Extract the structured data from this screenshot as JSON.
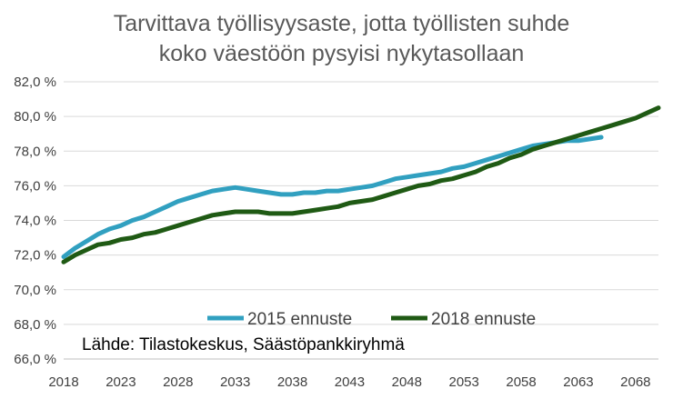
{
  "chart_data": {
    "type": "line",
    "title_lines": [
      "Tarvittava työllisyysaste, jotta työllisten suhde",
      "koko väestöön pysyisi nykytasollaan"
    ],
    "source": "Lähde: Tilastokeskus, Säästöpankkiryhmä",
    "xlabel": "",
    "ylabel": "",
    "xlim": [
      2018,
      2070
    ],
    "ylim": [
      66.0,
      82.0
    ],
    "x_ticks": [
      2018,
      2023,
      2028,
      2033,
      2038,
      2043,
      2048,
      2053,
      2058,
      2063,
      2068
    ],
    "y_ticks": [
      66.0,
      68.0,
      70.0,
      72.0,
      74.0,
      76.0,
      78.0,
      80.0,
      82.0
    ],
    "y_tick_labels": [
      "66,0 %",
      "68,0 %",
      "70,0 %",
      "72,0 %",
      "74,0 %",
      "76,0 %",
      "78,0 %",
      "80,0 %",
      "82,0 %"
    ],
    "grid": "horizontal",
    "legend_position": "bottom-center",
    "series": [
      {
        "name": "2015 ennuste",
        "color": "#31a0c0",
        "x": [
          2018,
          2019,
          2020,
          2021,
          2022,
          2023,
          2024,
          2025,
          2026,
          2027,
          2028,
          2029,
          2030,
          2031,
          2032,
          2033,
          2034,
          2035,
          2036,
          2037,
          2038,
          2039,
          2040,
          2041,
          2042,
          2043,
          2044,
          2045,
          2046,
          2047,
          2048,
          2049,
          2050,
          2051,
          2052,
          2053,
          2054,
          2055,
          2056,
          2057,
          2058,
          2059,
          2060,
          2061,
          2062,
          2063,
          2064,
          2065
        ],
        "values": [
          71.9,
          72.4,
          72.8,
          73.2,
          73.5,
          73.7,
          74.0,
          74.2,
          74.5,
          74.8,
          75.1,
          75.3,
          75.5,
          75.7,
          75.8,
          75.9,
          75.8,
          75.7,
          75.6,
          75.5,
          75.5,
          75.6,
          75.6,
          75.7,
          75.7,
          75.8,
          75.9,
          76.0,
          76.2,
          76.4,
          76.5,
          76.6,
          76.7,
          76.8,
          77.0,
          77.1,
          77.3,
          77.5,
          77.7,
          77.9,
          78.1,
          78.3,
          78.4,
          78.5,
          78.6,
          78.6,
          78.7,
          78.8
        ]
      },
      {
        "name": "2018 ennuste",
        "color": "#1f5a14",
        "x": [
          2018,
          2019,
          2020,
          2021,
          2022,
          2023,
          2024,
          2025,
          2026,
          2027,
          2028,
          2029,
          2030,
          2031,
          2032,
          2033,
          2034,
          2035,
          2036,
          2037,
          2038,
          2039,
          2040,
          2041,
          2042,
          2043,
          2044,
          2045,
          2046,
          2047,
          2048,
          2049,
          2050,
          2051,
          2052,
          2053,
          2054,
          2055,
          2056,
          2057,
          2058,
          2059,
          2060,
          2061,
          2062,
          2063,
          2064,
          2065,
          2066,
          2067,
          2068,
          2069,
          2070
        ],
        "values": [
          71.6,
          72.0,
          72.3,
          72.6,
          72.7,
          72.9,
          73.0,
          73.2,
          73.3,
          73.5,
          73.7,
          73.9,
          74.1,
          74.3,
          74.4,
          74.5,
          74.5,
          74.5,
          74.4,
          74.4,
          74.4,
          74.5,
          74.6,
          74.7,
          74.8,
          75.0,
          75.1,
          75.2,
          75.4,
          75.6,
          75.8,
          76.0,
          76.1,
          76.3,
          76.4,
          76.6,
          76.8,
          77.1,
          77.3,
          77.6,
          77.8,
          78.1,
          78.3,
          78.5,
          78.7,
          78.9,
          79.1,
          79.3,
          79.5,
          79.7,
          79.9,
          80.2,
          80.5
        ]
      }
    ]
  }
}
